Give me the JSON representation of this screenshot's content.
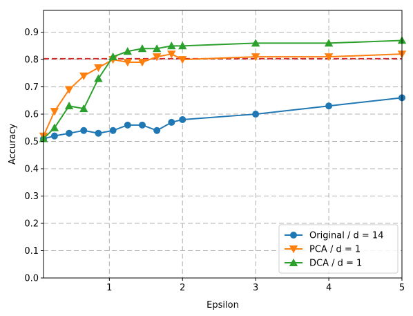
{
  "colors": {
    "original": "#1f77b4",
    "pca": "#ff7f0e",
    "dca": "#2ca02c",
    "baseline": "#d62728",
    "grid": "#b0b0b0"
  },
  "chart_data": {
    "type": "line",
    "title": "",
    "xlabel": "Epsilon",
    "ylabel": "Accuracy",
    "xlim": [
      0.1,
      5.0
    ],
    "ylim": [
      0.0,
      0.98
    ],
    "grid": true,
    "grid_style": "dashed",
    "legend_position": "lower-right",
    "x_ticks": [
      1,
      2,
      3,
      4,
      5
    ],
    "x_tick_labels": [
      "1",
      "2",
      "3",
      "4",
      "5"
    ],
    "y_ticks": [
      0.0,
      0.1,
      0.2,
      0.3,
      0.4,
      0.5,
      0.6,
      0.7,
      0.8,
      0.9
    ],
    "y_tick_labels": [
      "0.0",
      "0.1",
      "0.2",
      "0.3",
      "0.4",
      "0.5",
      "0.6",
      "0.7",
      "0.8",
      "0.9"
    ],
    "reference_line": {
      "y": 0.803,
      "style": "dashed"
    },
    "series": [
      {
        "name": "Original / d = 14",
        "marker": "circle",
        "x": [
          0.1,
          0.25,
          0.45,
          0.65,
          0.85,
          1.05,
          1.25,
          1.45,
          1.65,
          1.85,
          2.0,
          3.0,
          4.0,
          5.0
        ],
        "y": [
          0.51,
          0.52,
          0.53,
          0.54,
          0.53,
          0.54,
          0.56,
          0.56,
          0.54,
          0.57,
          0.58,
          0.6,
          0.63,
          0.66
        ]
      },
      {
        "name": "PCA / d = 1",
        "marker": "triangle-down",
        "x": [
          0.1,
          0.25,
          0.45,
          0.65,
          0.85,
          1.05,
          1.25,
          1.45,
          1.65,
          1.85,
          2.0,
          3.0,
          4.0,
          5.0
        ],
        "y": [
          0.52,
          0.61,
          0.69,
          0.74,
          0.77,
          0.8,
          0.79,
          0.79,
          0.81,
          0.82,
          0.8,
          0.81,
          0.81,
          0.82
        ]
      },
      {
        "name": "DCA / d = 1",
        "marker": "triangle-up",
        "x": [
          0.1,
          0.25,
          0.45,
          0.65,
          0.85,
          1.05,
          1.25,
          1.45,
          1.65,
          1.85,
          2.0,
          3.0,
          4.0,
          5.0
        ],
        "y": [
          0.51,
          0.55,
          0.63,
          0.62,
          0.73,
          0.81,
          0.83,
          0.84,
          0.84,
          0.85,
          0.85,
          0.86,
          0.86,
          0.87
        ]
      }
    ]
  }
}
